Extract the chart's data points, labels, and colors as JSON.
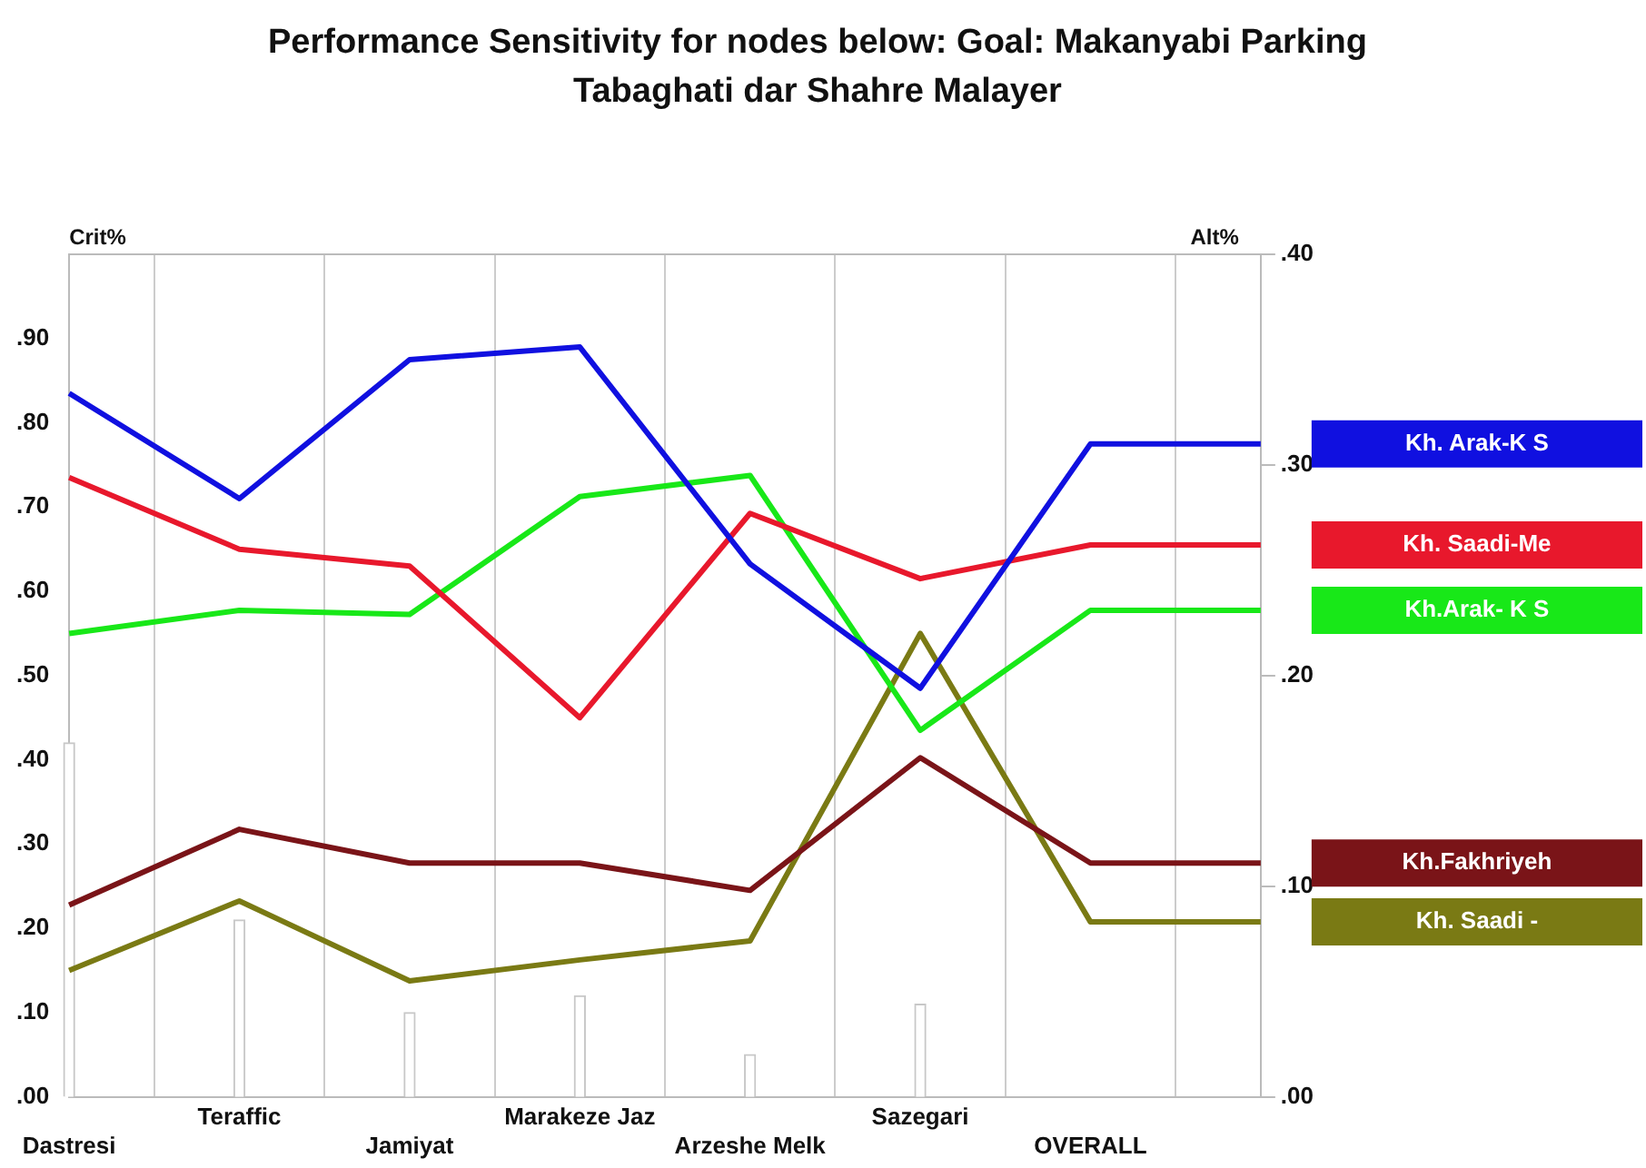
{
  "chart_data": {
    "type": "line",
    "title": "Performance Sensitivity for nodes below: Goal: Makanyabi Parking Tabaghati dar Shahre Malayer",
    "ylabel": "Crit%",
    "y2label": "Alt%",
    "categories": [
      "Dastresi",
      "Teraffic",
      "Jamiyat",
      "Marakeze Jaz",
      "Arzeshe Melk",
      "Sazegari",
      "OVERALL",
      null
    ],
    "series": [
      {
        "type": "bar",
        "color": "#c8c8c8",
        "values": [
          0.42,
          0.21,
          0.1,
          0.12,
          0.05,
          0.11,
          null,
          null
        ]
      },
      {
        "name": "Kh. Arak-K S",
        "color": "#1010e0",
        "axis": "y2",
        "values": [
          0.334,
          0.284,
          0.35,
          0.356,
          0.253,
          0.194,
          0.31,
          0.31
        ]
      },
      {
        "name": "Kh. Saadi-Me",
        "color": "#e8182c",
        "axis": "y2",
        "values": [
          0.294,
          0.26,
          0.252,
          0.18,
          0.277,
          0.246,
          0.262,
          0.262
        ]
      },
      {
        "name": "Kh.Arak- K S",
        "color": "#18e818",
        "axis": "y2",
        "values": [
          0.22,
          0.231,
          0.229,
          0.285,
          0.295,
          0.174,
          0.231,
          0.231
        ]
      },
      {
        "name": "Kh.Fakhriyeh",
        "color": "#7a1418",
        "axis": "y2",
        "values": [
          0.091,
          0.127,
          0.111,
          0.111,
          0.098,
          0.161,
          0.111,
          0.111
        ]
      },
      {
        "name": "Kh. Saadi -",
        "color": "#7a7a14",
        "axis": "y2",
        "values": [
          0.06,
          0.093,
          0.055,
          0.065,
          0.074,
          0.22,
          0.083,
          0.083
        ]
      }
    ],
    "ylim": [
      0,
      1
    ],
    "yticks": [
      {
        "value": 0,
        "label": ".00"
      },
      {
        "value": 0.1,
        "label": ".10"
      },
      {
        "value": 0.2,
        "label": ".20"
      },
      {
        "value": 0.3,
        "label": ".30"
      },
      {
        "value": 0.4,
        "label": ".40"
      },
      {
        "value": 0.5,
        "label": ".50"
      },
      {
        "value": 0.6,
        "label": ".60"
      },
      {
        "value": 0.7,
        "label": ".70"
      },
      {
        "value": 0.8,
        "label": ".80"
      },
      {
        "value": 0.9,
        "label": ".90"
      }
    ],
    "y2lim": [
      0,
      0.4
    ],
    "y2ticks": [
      {
        "value": 0,
        "label": ".00"
      },
      {
        "value": 0.1,
        "label": ".10"
      },
      {
        "value": 0.2,
        "label": ".20"
      },
      {
        "value": 0.3,
        "label": ".30"
      },
      {
        "value": 0.4,
        "label": ".40"
      }
    ],
    "grid": "x",
    "legend": "right",
    "marker": "none",
    "line_style": "solid"
  }
}
